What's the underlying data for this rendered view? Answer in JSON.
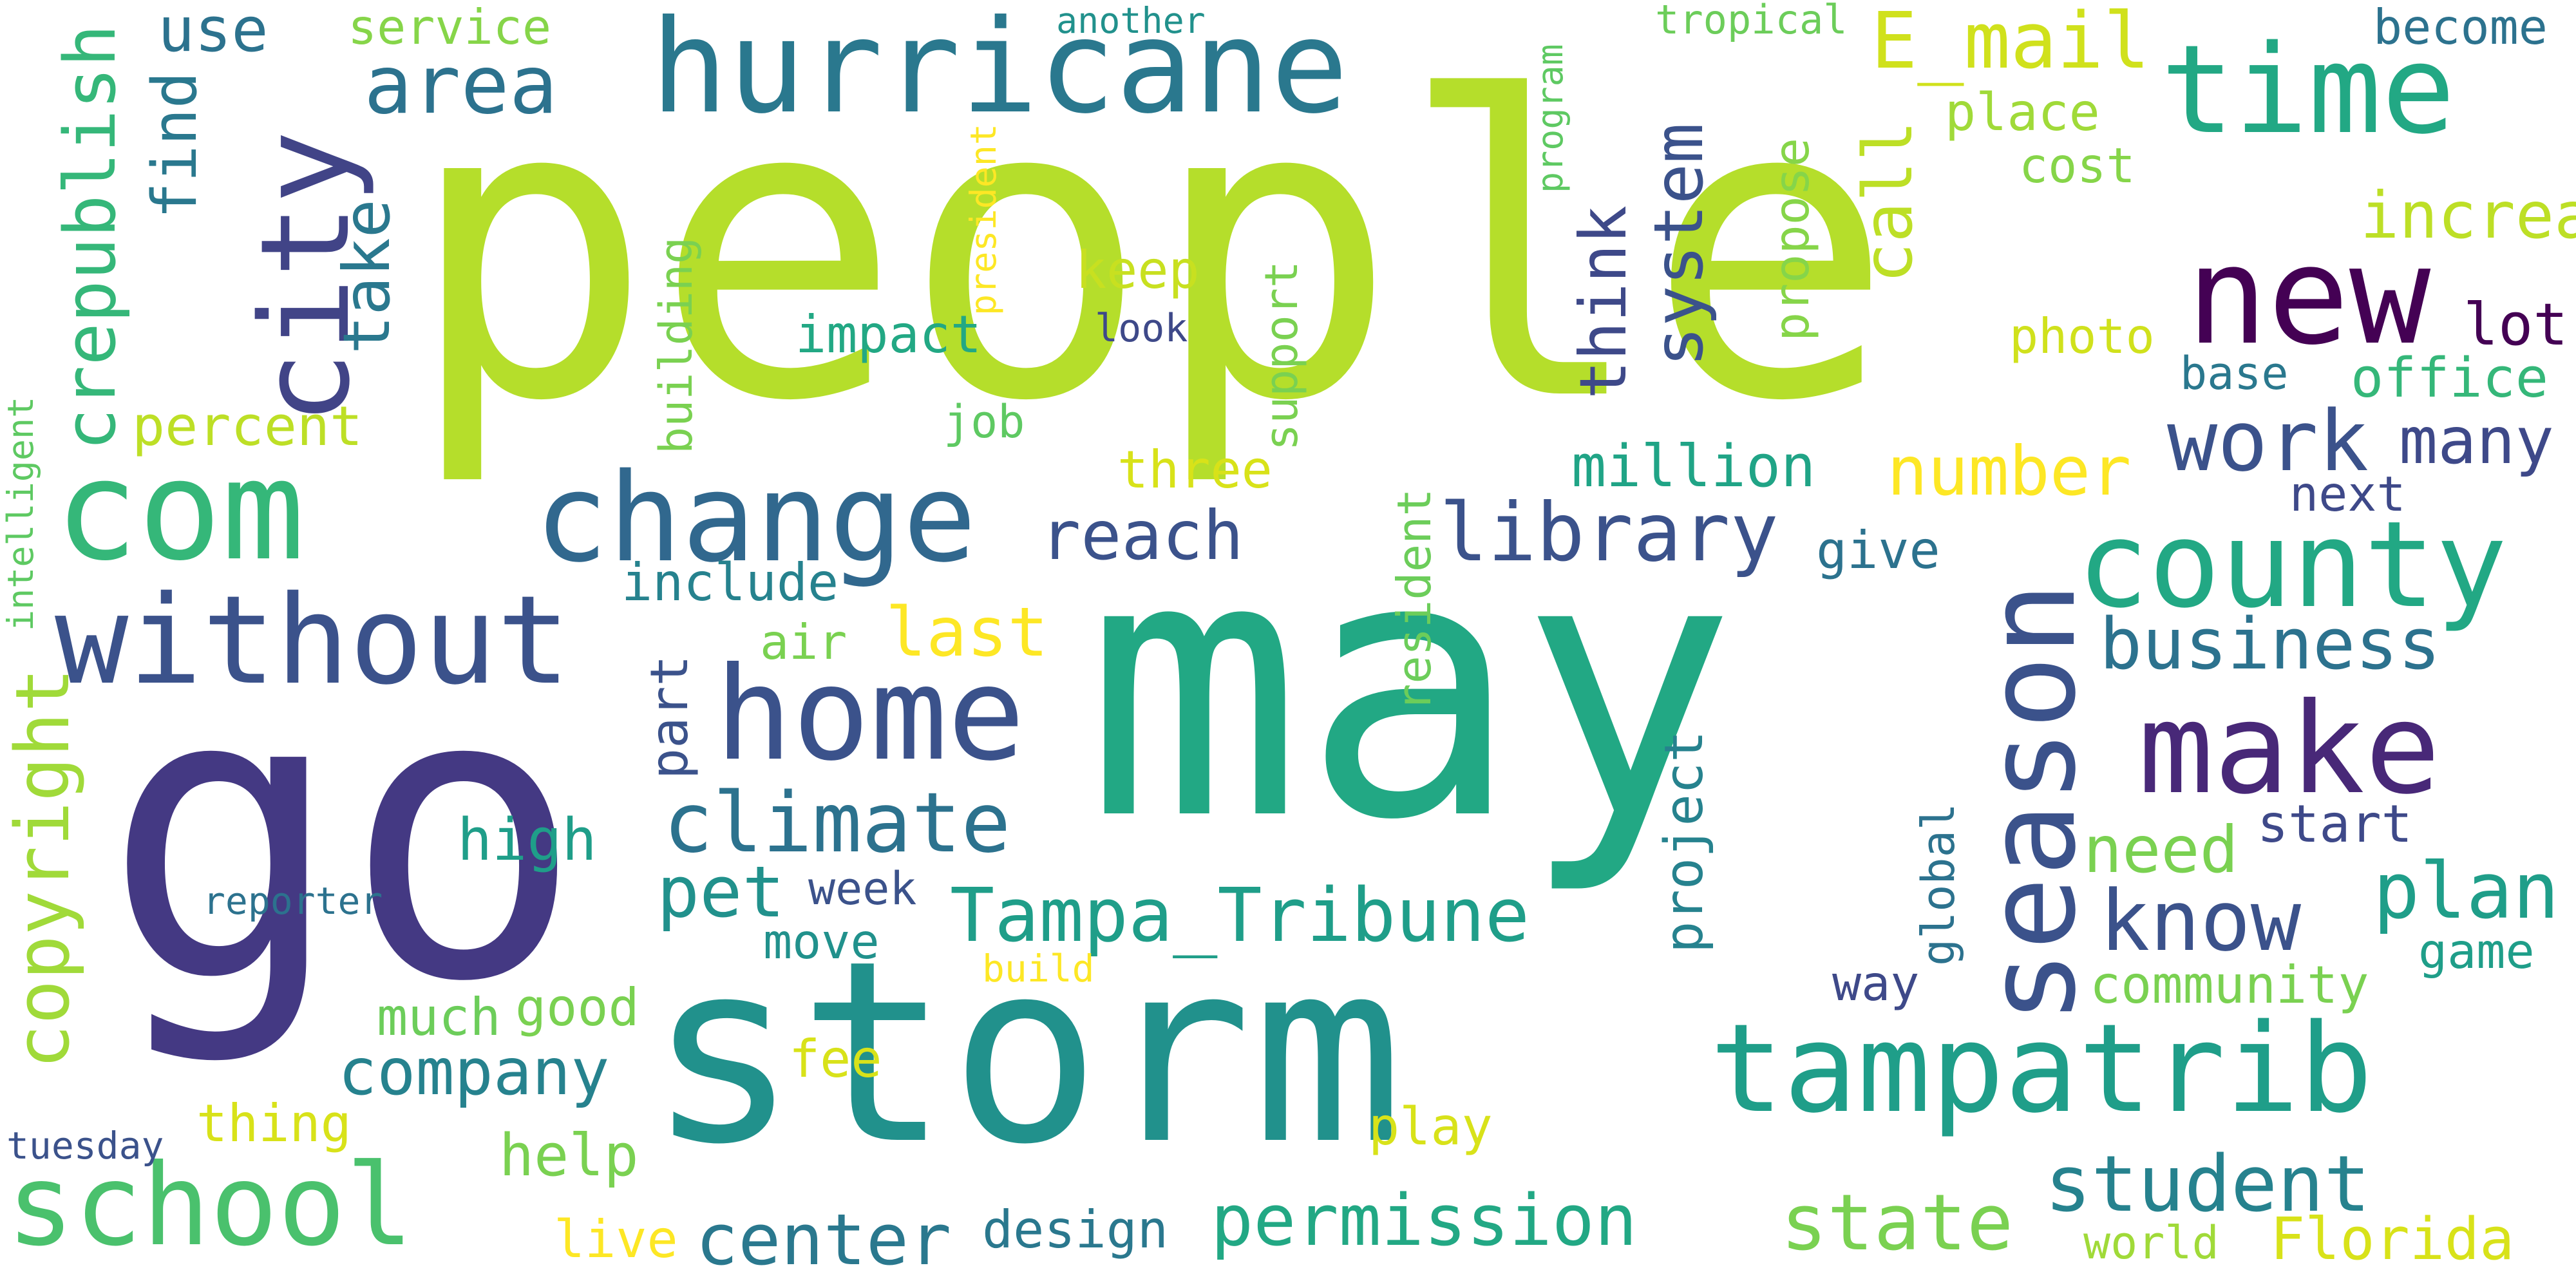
{
  "title": "",
  "palette": "viridis",
  "words": [
    {
      "text": "people",
      "color": "#b5de2b"
    },
    {
      "text": "may",
      "color": "#22a884"
    },
    {
      "text": "go",
      "color": "#443983"
    },
    {
      "text": "storm",
      "color": "#21918c"
    },
    {
      "text": "hurricane",
      "color": "#2a788e"
    },
    {
      "text": "time",
      "color": "#22a884"
    },
    {
      "text": "new",
      "color": "#440154"
    },
    {
      "text": "city",
      "color": "#414487"
    },
    {
      "text": "com",
      "color": "#35b779"
    },
    {
      "text": "change",
      "color": "#31688e"
    },
    {
      "text": "without",
      "color": "#3b528b"
    },
    {
      "text": "home",
      "color": "#3b528b"
    },
    {
      "text": "county",
      "color": "#22a884"
    },
    {
      "text": "season",
      "color": "#3b528b"
    },
    {
      "text": "make",
      "color": "#482878"
    },
    {
      "text": "tampatrib",
      "color": "#1f9e89"
    },
    {
      "text": "school",
      "color": "#4ac16d"
    },
    {
      "text": "climate",
      "color": "#2c728e"
    },
    {
      "text": "Tampa_Tribune",
      "color": "#1f9e89"
    },
    {
      "text": "area",
      "color": "#2c728e"
    },
    {
      "text": "crepublish",
      "color": "#35b779"
    },
    {
      "text": "library",
      "color": "#3b528b"
    },
    {
      "text": "E_mail",
      "color": "#d0e11c"
    },
    {
      "text": "work",
      "color": "#3b528b"
    },
    {
      "text": "business",
      "color": "#2c728e"
    },
    {
      "text": "know",
      "color": "#3b528b"
    },
    {
      "text": "plan",
      "color": "#1f9e89"
    },
    {
      "text": "student",
      "color": "#26828e"
    },
    {
      "text": "state",
      "color": "#7ad151"
    },
    {
      "text": "permission",
      "color": "#22a884"
    },
    {
      "text": "center",
      "color": "#2a788e"
    },
    {
      "text": "company",
      "color": "#26828e"
    },
    {
      "text": "copyright",
      "color": "#a0da39"
    },
    {
      "text": "increase",
      "color": "#bddf26"
    },
    {
      "text": "think",
      "color": "#3e4989"
    },
    {
      "text": "reach",
      "color": "#3b528b"
    },
    {
      "text": "last",
      "color": "#fde725"
    },
    {
      "text": "number",
      "color": "#fde725"
    },
    {
      "text": "call",
      "color": "#bddf26"
    },
    {
      "text": "system",
      "color": "#3b528b"
    },
    {
      "text": "take",
      "color": "#2a788e"
    },
    {
      "text": "percent",
      "color": "#bddf26"
    },
    {
      "text": "use",
      "color": "#2c728e"
    },
    {
      "text": "find",
      "color": "#2a788e"
    },
    {
      "text": "many",
      "color": "#3e4989"
    },
    {
      "text": "lot",
      "color": "#440154"
    },
    {
      "text": "office",
      "color": "#35b779"
    },
    {
      "text": "impact",
      "color": "#22a884"
    },
    {
      "text": "keep",
      "color": "#c8e020"
    },
    {
      "text": "million",
      "color": "#20a486"
    },
    {
      "text": "include",
      "color": "#26828e"
    },
    {
      "text": "need",
      "color": "#7ad151"
    },
    {
      "text": "pet",
      "color": "#21918c"
    },
    {
      "text": "high",
      "color": "#1f9e89"
    },
    {
      "text": "community",
      "color": "#7ad151"
    },
    {
      "text": "Florida",
      "color": "#d8e219"
    },
    {
      "text": "design",
      "color": "#2a788e"
    },
    {
      "text": "help",
      "color": "#7ad151"
    },
    {
      "text": "good",
      "color": "#7ad151"
    },
    {
      "text": "much",
      "color": "#6ccd5a"
    },
    {
      "text": "thing",
      "color": "#d8e219"
    },
    {
      "text": "play",
      "color": "#d8e219"
    },
    {
      "text": "start",
      "color": "#3e4989"
    },
    {
      "text": "game",
      "color": "#1f9e89"
    },
    {
      "text": "give",
      "color": "#2c728e"
    },
    {
      "text": "air",
      "color": "#7ad151"
    },
    {
      "text": "move",
      "color": "#21918c"
    },
    {
      "text": "week",
      "color": "#3b528b"
    },
    {
      "text": "way",
      "color": "#3e4989"
    },
    {
      "text": "fee",
      "color": "#d8e219"
    },
    {
      "text": "live",
      "color": "#fde725"
    },
    {
      "text": "world",
      "color": "#a0da39"
    },
    {
      "text": "job",
      "color": "#5ec962"
    },
    {
      "text": "three",
      "color": "#d8e219"
    },
    {
      "text": "photo",
      "color": "#d0e11c"
    },
    {
      "text": "base",
      "color": "#2a788e"
    },
    {
      "text": "next",
      "color": "#3e4989"
    },
    {
      "text": "cost",
      "color": "#86d549"
    },
    {
      "text": "place",
      "color": "#a0da39"
    },
    {
      "text": "become",
      "color": "#2c728e"
    },
    {
      "text": "tropical",
      "color": "#6ccd5a"
    },
    {
      "text": "service",
      "color": "#86d549"
    },
    {
      "text": "another",
      "color": "#21918c"
    },
    {
      "text": "look",
      "color": "#3e4989"
    },
    {
      "text": "reporter",
      "color": "#2c728e"
    },
    {
      "text": "tuesday",
      "color": "#3b528b"
    },
    {
      "text": "build",
      "color": "#fde725"
    },
    {
      "text": "support",
      "color": "#7ad151"
    },
    {
      "text": "building",
      "color": "#7ad151"
    },
    {
      "text": "propose",
      "color": "#86d549"
    },
    {
      "text": "resident",
      "color": "#6ccd5a"
    },
    {
      "text": "part",
      "color": "#3b528b"
    },
    {
      "text": "project",
      "color": "#26828e"
    },
    {
      "text": "global",
      "color": "#2c728e"
    },
    {
      "text": "intelligent",
      "color": "#5ec962"
    },
    {
      "text": "president",
      "color": "#fde725"
    },
    {
      "text": "program",
      "color": "#5ec962"
    }
  ]
}
